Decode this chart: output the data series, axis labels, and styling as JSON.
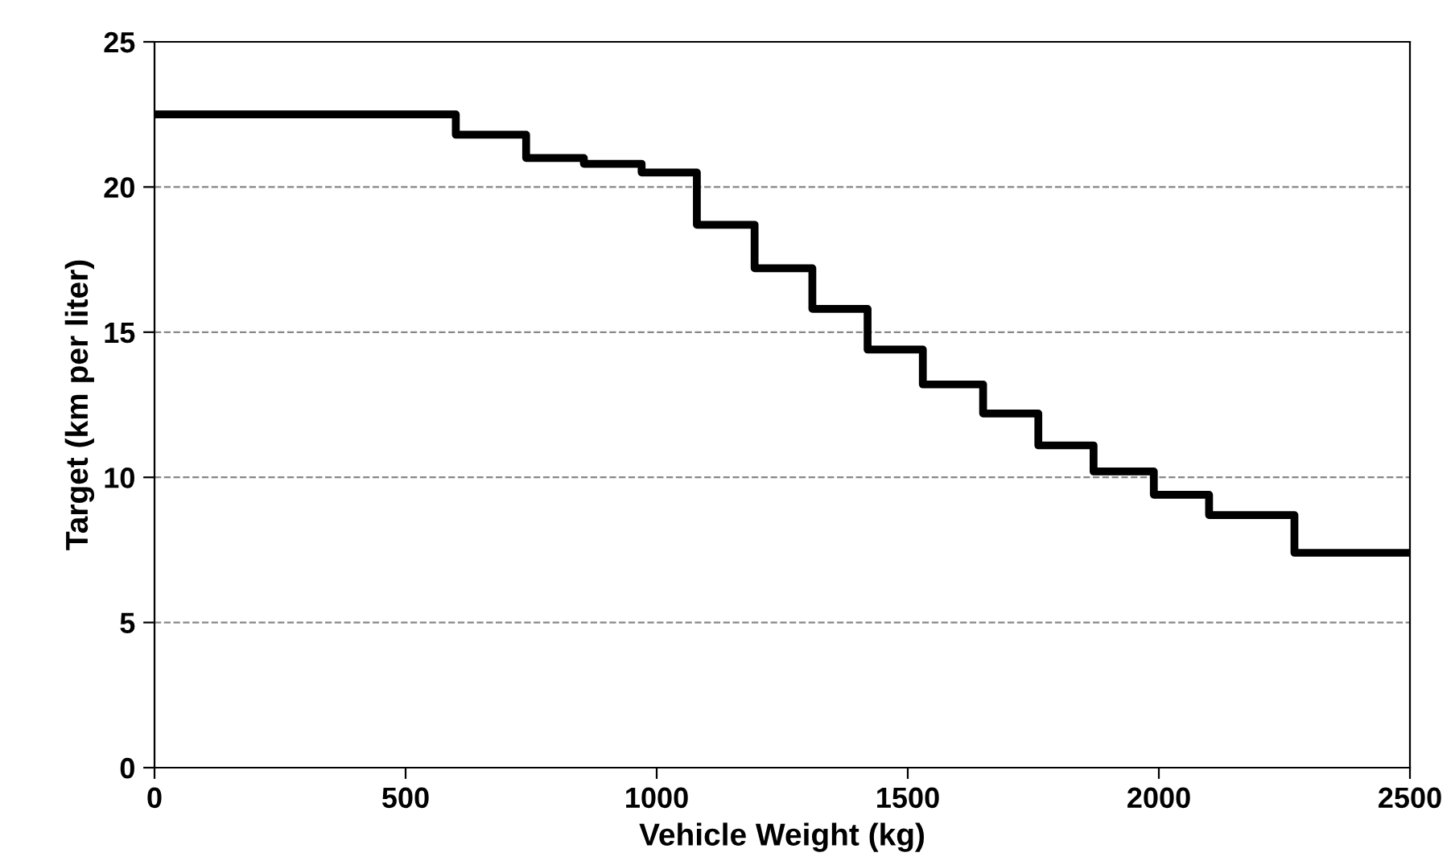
{
  "chart_data": {
    "type": "step",
    "xlabel": "Vehicle Weight (kg)",
    "ylabel": "Target (km per liter)",
    "x": [
      0,
      600,
      740,
      855,
      970,
      1080,
      1195,
      1310,
      1420,
      1530,
      1650,
      1760,
      1870,
      1990,
      2100,
      2270,
      2500
    ],
    "series": [
      {
        "color": "#000000",
        "values": [
          22.5,
          21.8,
          21.0,
          20.8,
          20.5,
          18.7,
          17.2,
          15.8,
          14.4,
          13.2,
          12.2,
          11.1,
          10.2,
          9.4,
          8.7,
          7.4,
          7.4
        ]
      }
    ],
    "xlim": [
      0,
      2500
    ],
    "xticks": [
      0,
      500,
      1000,
      1500,
      2000,
      2500
    ],
    "ylim": [
      0,
      25
    ],
    "yticks": [
      0,
      5,
      10,
      15,
      20,
      25
    ],
    "grid": "y",
    "line_style": "solid",
    "marker": "none"
  }
}
